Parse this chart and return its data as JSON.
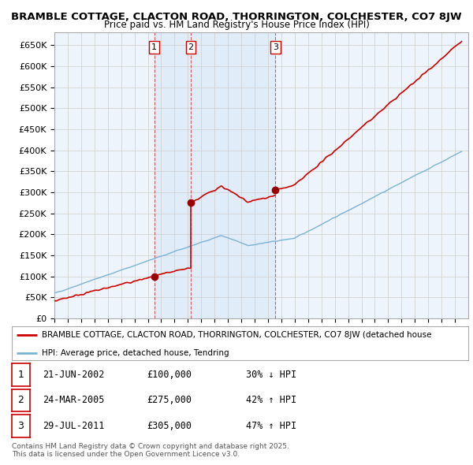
{
  "title1": "BRAMBLE COTTAGE, CLACTON ROAD, THORRINGTON, COLCHESTER, CO7 8JW",
  "title2": "Price paid vs. HM Land Registry's House Price Index (HPI)",
  "ylabel_ticks": [
    "£0",
    "£50K",
    "£100K",
    "£150K",
    "£200K",
    "£250K",
    "£300K",
    "£350K",
    "£400K",
    "£450K",
    "£500K",
    "£550K",
    "£600K",
    "£650K"
  ],
  "ytick_values": [
    0,
    50000,
    100000,
    150000,
    200000,
    250000,
    300000,
    350000,
    400000,
    450000,
    500000,
    550000,
    600000,
    650000
  ],
  "hpi_color": "#7ab3d4",
  "sale_color": "#cc0000",
  "shade_color": "#ddeeff",
  "legend_label1": "BRAMBLE COTTAGE, CLACTON ROAD, THORRINGTON, COLCHESTER, CO7 8JW (detached house",
  "legend_label2": "HPI: Average price, detached house, Tendring",
  "transactions": [
    {
      "num": 1,
      "date": "21-JUN-2002",
      "price": 100000,
      "pct": "30%",
      "dir": "↓",
      "year": 2002.47
    },
    {
      "num": 2,
      "date": "24-MAR-2005",
      "price": 275000,
      "pct": "42%",
      "dir": "↑",
      "year": 2005.22
    },
    {
      "num": 3,
      "date": "29-JUL-2011",
      "price": 305000,
      "pct": "47%",
      "dir": "↑",
      "year": 2011.56
    }
  ],
  "footer": "Contains HM Land Registry data © Crown copyright and database right 2025.\nThis data is licensed under the Open Government Licence v3.0.",
  "bg_color": "#ffffff",
  "grid_color": "#cccccc",
  "xmin": 1995,
  "xmax": 2026
}
